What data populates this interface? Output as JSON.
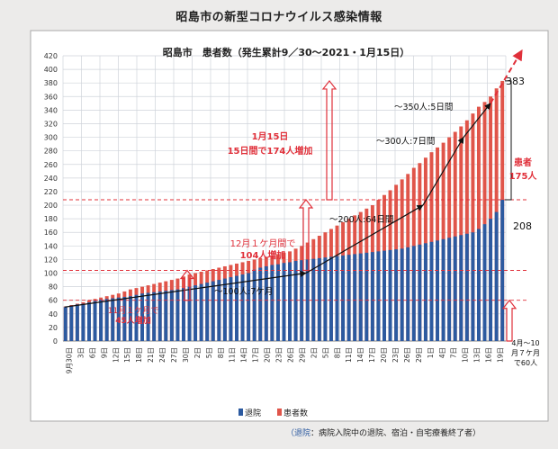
{
  "page_title": "昭島市の新型コロナウイルス感染情報",
  "chart_data": {
    "type": "bar",
    "title": "昭島市　患者数（発生累計9／30～2021・1月15日）",
    "ylim": [
      0,
      420
    ],
    "y_ticks": [
      0,
      20,
      40,
      60,
      80,
      100,
      120,
      140,
      160,
      180,
      200,
      220,
      240,
      260,
      280,
      300,
      320,
      340,
      360,
      380,
      400,
      420
    ],
    "grid": true,
    "legend_position": "bottom",
    "x_tick_labels": [
      "9月30日",
      "3日",
      "6日",
      "9日",
      "12日",
      "15日",
      "18日",
      "21日",
      "24日",
      "27日",
      "30日",
      "2日",
      "5日",
      "8日",
      "11日",
      "14日",
      "17日",
      "20日",
      "23日",
      "26日",
      "29日",
      "2日",
      "5日",
      "8日",
      "11日",
      "14日",
      "17日",
      "20日",
      "23日",
      "26日",
      "29日",
      "1日",
      "4日",
      "7日",
      "10日",
      "13日",
      "16日",
      "19日"
    ],
    "series": [
      {
        "name": "退院",
        "color": "#2c5aa0",
        "values": [
          50,
          52,
          54,
          55,
          57,
          59,
          61,
          62,
          63,
          64,
          65,
          66,
          68,
          70,
          71,
          72,
          73,
          74,
          75,
          76,
          78,
          80,
          82,
          84,
          86,
          88,
          90,
          92,
          94,
          96,
          98,
          100,
          105,
          108,
          110,
          112,
          113,
          115,
          116,
          118,
          119,
          120,
          121,
          122,
          123,
          124,
          125,
          126,
          127,
          128,
          129,
          130,
          131,
          132,
          133,
          134,
          135,
          136,
          138,
          140,
          142,
          144,
          146,
          148,
          150,
          152,
          154,
          156,
          158,
          160,
          165,
          172,
          180,
          190,
          208
        ]
      },
      {
        "name": "患者数",
        "color": "#e0554a",
        "values": [
          51,
          53,
          55,
          57,
          60,
          62,
          64,
          66,
          68,
          70,
          73,
          76,
          78,
          80,
          82,
          84,
          86,
          88,
          90,
          92,
          95,
          98,
          100,
          102,
          104,
          106,
          108,
          110,
          112,
          114,
          116,
          118,
          120,
          122,
          124,
          126,
          128,
          130,
          132,
          136,
          140,
          145,
          150,
          155,
          160,
          165,
          170,
          175,
          180,
          185,
          190,
          195,
          200,
          208,
          215,
          222,
          230,
          238,
          246,
          255,
          262,
          270,
          278,
          285,
          292,
          300,
          308,
          316,
          325,
          335,
          345,
          352,
          360,
          372,
          383
        ]
      }
    ],
    "annotations": {
      "nov": {
        "line1": "11月１ケ月で",
        "line2": "45人増加",
        "value": 60
      },
      "dec": {
        "line1": "12月１ケ月間で",
        "line2": "104人増加",
        "value": 104
      },
      "jan": {
        "line1": "1月15日",
        "line2": "15日間で174人増加",
        "value": 208
      },
      "s100": "～100人:7ケ月",
      "s200": "～200人:64日間",
      "s300": "～300人:7日間",
      "s350": "～350人:5日間",
      "v383": "383",
      "v208": "208",
      "patients_label": "患者",
      "patients_diff": "175人",
      "early": {
        "line1": "4月～10",
        "line2": "月７ケ月",
        "line3": "で60人"
      }
    },
    "footnote": {
      "head": "（退院",
      "tail": "：病院入院中の退院、宿泊・自宅療養終了者）"
    }
  }
}
